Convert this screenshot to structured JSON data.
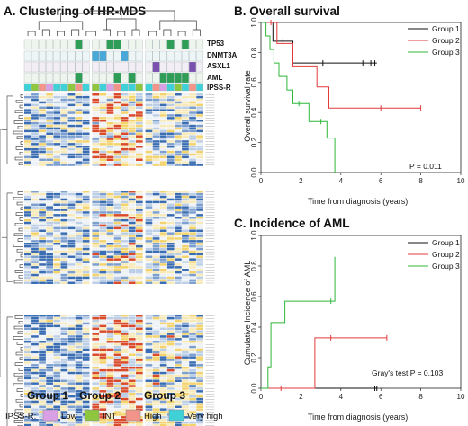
{
  "panelA": {
    "title": "A. Clustering of HR-MDS",
    "track_labels": [
      "TP53",
      "DNMT3A",
      "ASXL1",
      "AML",
      "IPSS-R"
    ],
    "group_labels": [
      "Group 1",
      "Group 2",
      "Group 3"
    ],
    "ipss_legend": {
      "title": "IPSS-R:",
      "items": [
        {
          "label": "Low",
          "color": "#d9a0e6"
        },
        {
          "label": "INT",
          "color": "#8ec63f"
        },
        {
          "label": "High",
          "color": "#f2948a"
        },
        {
          "label": "Very high",
          "color": "#3fd0d8"
        }
      ]
    },
    "colors": {
      "tp53": "#2e9e57",
      "dnmt3a": "#4aa8d8",
      "asxl1": "#7a4fb0",
      "aml": "#2e9e57",
      "heat_low": "#3b6db2",
      "heat_mid": "#eef2f6",
      "heat_high": "#f3d36b",
      "heat_max": "#d94b2b"
    }
  },
  "chart_data": [
    {
      "type": "line",
      "title": "B. Overall survival",
      "xlabel": "Time from diagnosis (years)",
      "ylabel": "Overall survival rate",
      "xlim": [
        0,
        10
      ],
      "ylim": [
        0,
        1.0
      ],
      "xticks": [
        "0",
        "2",
        "4",
        "6",
        "8",
        "10"
      ],
      "yticks": [
        "0.0",
        "0.2",
        "0.4",
        "0.6",
        "0.8",
        "1.0"
      ],
      "legend_position": "top-right",
      "annotation": "P = 0.011",
      "series": [
        {
          "name": "Group 1",
          "color": "#111111",
          "steps": [
            [
              0,
              1.0
            ],
            [
              0.6,
              1.0
            ],
            [
              0.6,
              0.875
            ],
            [
              1.6,
              0.875
            ],
            [
              1.6,
              0.73
            ],
            [
              5.8,
              0.73
            ]
          ],
          "censors": [
            [
              1.1,
              0.875
            ],
            [
              3.1,
              0.73
            ],
            [
              5.1,
              0.73
            ],
            [
              5.5,
              0.73
            ],
            [
              5.7,
              0.73
            ]
          ]
        },
        {
          "name": "Group 2",
          "color": "#e23b3b",
          "steps": [
            [
              0,
              1.0
            ],
            [
              0.8,
              1.0
            ],
            [
              0.8,
              0.86
            ],
            [
              1.6,
              0.86
            ],
            [
              1.6,
              0.71
            ],
            [
              2.8,
              0.71
            ],
            [
              2.8,
              0.57
            ],
            [
              3.4,
              0.57
            ],
            [
              3.4,
              0.43
            ],
            [
              8.0,
              0.43
            ]
          ],
          "censors": [
            [
              0.5,
              1.0
            ],
            [
              6.0,
              0.43
            ],
            [
              8.0,
              0.43
            ]
          ]
        },
        {
          "name": "Group 3",
          "color": "#2fb83a",
          "steps": [
            [
              0,
              1.0
            ],
            [
              0.25,
              1.0
            ],
            [
              0.25,
              0.91
            ],
            [
              0.45,
              0.91
            ],
            [
              0.45,
              0.82
            ],
            [
              0.65,
              0.82
            ],
            [
              0.65,
              0.73
            ],
            [
              0.9,
              0.73
            ],
            [
              0.9,
              0.64
            ],
            [
              1.3,
              0.64
            ],
            [
              1.3,
              0.55
            ],
            [
              1.6,
              0.55
            ],
            [
              1.6,
              0.46
            ],
            [
              2.4,
              0.46
            ],
            [
              2.4,
              0.34
            ],
            [
              3.3,
              0.34
            ],
            [
              3.3,
              0.23
            ],
            [
              3.7,
              0.23
            ],
            [
              3.7,
              0.0
            ]
          ],
          "censors": [
            [
              1.9,
              0.46
            ],
            [
              2.0,
              0.46
            ],
            [
              3.0,
              0.34
            ]
          ]
        }
      ]
    },
    {
      "type": "line",
      "title": "C. Incidence of AML",
      "xlabel": "Time from diagnosis (years)",
      "ylabel": "Cumulative Incidence of AML",
      "xlim": [
        0,
        10
      ],
      "ylim": [
        0,
        1.0
      ],
      "xticks": [
        "0",
        "2",
        "4",
        "6",
        "8",
        "10"
      ],
      "yticks": [
        "0.0",
        "0.2",
        "0.4",
        "0.6",
        "0.8",
        "1.0"
      ],
      "legend_position": "top-right",
      "annotation": "Gray's test P = 0.103",
      "series": [
        {
          "name": "Group 1",
          "color": "#111111",
          "steps": [
            [
              0,
              0.0
            ],
            [
              5.8,
              0.0
            ]
          ],
          "censors": [
            [
              5.7,
              0.0
            ],
            [
              5.8,
              0.0
            ]
          ]
        },
        {
          "name": "Group 2",
          "color": "#e23b3b",
          "steps": [
            [
              0,
              0.0
            ],
            [
              2.7,
              0.0
            ],
            [
              2.7,
              0.33
            ],
            [
              6.3,
              0.33
            ]
          ],
          "censors": [
            [
              1.0,
              0.0
            ],
            [
              3.5,
              0.33
            ],
            [
              6.3,
              0.33
            ]
          ]
        },
        {
          "name": "Group 3",
          "color": "#2fb83a",
          "steps": [
            [
              0,
              0.0
            ],
            [
              0.35,
              0.0
            ],
            [
              0.35,
              0.14
            ],
            [
              0.5,
              0.14
            ],
            [
              0.5,
              0.43
            ],
            [
              1.2,
              0.43
            ],
            [
              1.2,
              0.57
            ],
            [
              3.7,
              0.57
            ],
            [
              3.7,
              0.86
            ]
          ],
          "censors": [
            [
              3.5,
              0.57
            ]
          ]
        }
      ]
    }
  ]
}
